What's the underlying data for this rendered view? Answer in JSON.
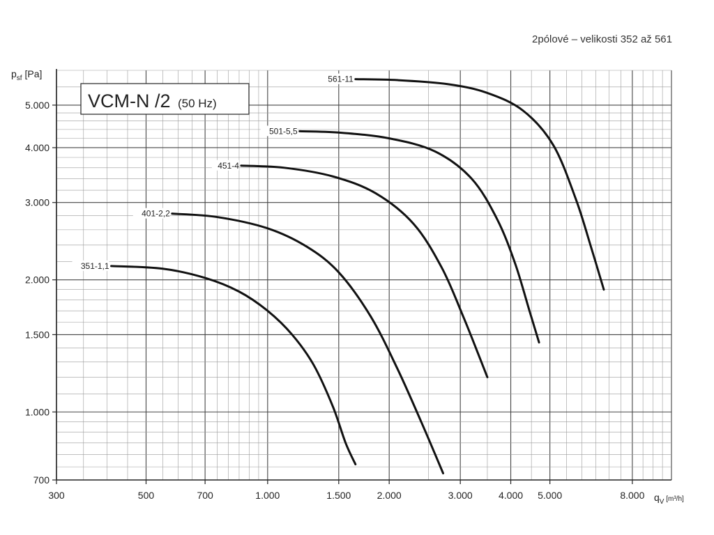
{
  "chart_data": {
    "type": "line",
    "subtitle": "2pólové – velikosti 352 až 561",
    "model": {
      "name": "VCM-N /2",
      "frequency": "(50 Hz)"
    },
    "x_axis": {
      "label_main": "q",
      "label_sub": "V",
      "label_unit": " [m³/h]",
      "scale": "log",
      "range": [
        300,
        10000
      ],
      "ticks": [
        {
          "value": 300,
          "label": "300"
        },
        {
          "value": 500,
          "label": "500"
        },
        {
          "value": 700,
          "label": "700"
        },
        {
          "value": 1000,
          "label": "1.000"
        },
        {
          "value": 1500,
          "label": "1.500"
        },
        {
          "value": 2000,
          "label": "2.000"
        },
        {
          "value": 3000,
          "label": "3.000"
        },
        {
          "value": 4000,
          "label": "4.000"
        },
        {
          "value": 5000,
          "label": "5.000"
        },
        {
          "value": 8000,
          "label": "8.000"
        }
      ]
    },
    "y_axis": {
      "label_main": "p",
      "label_sub": "sf",
      "label_unit": " [Pa]",
      "scale": "log",
      "range": [
        700,
        6000
      ],
      "ticks": [
        {
          "value": 700,
          "label": "700"
        },
        {
          "value": 1000,
          "label": "1.000"
        },
        {
          "value": 1500,
          "label": "1.500"
        },
        {
          "value": 2000,
          "label": "2.000"
        },
        {
          "value": 3000,
          "label": "3.000"
        },
        {
          "value": 4000,
          "label": "4.000"
        },
        {
          "value": 5000,
          "label": "5.000"
        }
      ]
    },
    "grid": true,
    "series": [
      {
        "name": "351-1,1",
        "points": [
          [
            410,
            2150
          ],
          [
            550,
            2120
          ],
          [
            700,
            2020
          ],
          [
            850,
            1880
          ],
          [
            1000,
            1700
          ],
          [
            1150,
            1500
          ],
          [
            1300,
            1280
          ],
          [
            1450,
            1030
          ],
          [
            1560,
            850
          ],
          [
            1650,
            760
          ]
        ]
      },
      {
        "name": "401-2,2",
        "points": [
          [
            580,
            2830
          ],
          [
            750,
            2780
          ],
          [
            1000,
            2620
          ],
          [
            1250,
            2380
          ],
          [
            1500,
            2080
          ],
          [
            1800,
            1650
          ],
          [
            2100,
            1250
          ],
          [
            2400,
            950
          ],
          [
            2600,
            800
          ],
          [
            2720,
            725
          ]
        ]
      },
      {
        "name": "451-4",
        "points": [
          [
            860,
            3640
          ],
          [
            1100,
            3600
          ],
          [
            1450,
            3440
          ],
          [
            1850,
            3150
          ],
          [
            2300,
            2680
          ],
          [
            2700,
            2130
          ],
          [
            3050,
            1650
          ],
          [
            3350,
            1330
          ],
          [
            3500,
            1200
          ]
        ]
      },
      {
        "name": "501-5,5",
        "points": [
          [
            1200,
            4360
          ],
          [
            1500,
            4330
          ],
          [
            2000,
            4200
          ],
          [
            2600,
            3920
          ],
          [
            3200,
            3400
          ],
          [
            3700,
            2750
          ],
          [
            4100,
            2180
          ],
          [
            4450,
            1700
          ],
          [
            4700,
            1440
          ]
        ]
      },
      {
        "name": "561-11",
        "points": [
          [
            1650,
            5730
          ],
          [
            2100,
            5700
          ],
          [
            2800,
            5580
          ],
          [
            3500,
            5330
          ],
          [
            4300,
            4850
          ],
          [
            5100,
            4050
          ],
          [
            5800,
            3050
          ],
          [
            6300,
            2400
          ],
          [
            6800,
            1900
          ]
        ]
      }
    ]
  }
}
